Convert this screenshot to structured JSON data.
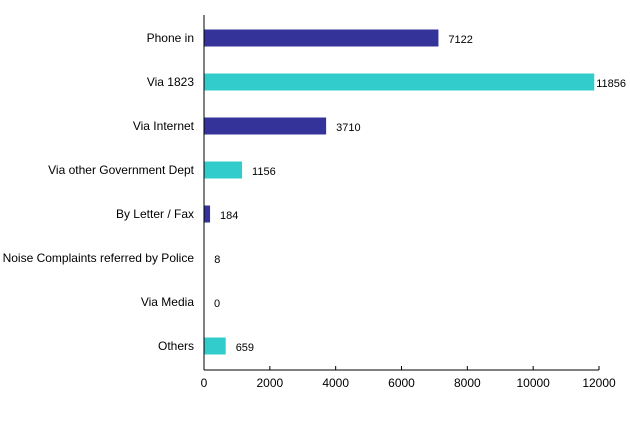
{
  "chart_data": {
    "type": "bar",
    "orientation": "horizontal",
    "title": "",
    "xlabel": "",
    "ylabel": "",
    "categories": [
      "Phone in",
      "Via 1823",
      "Via Internet",
      "Via other Government Dept",
      "By Letter / Fax",
      "Noise Complaints referred by Police",
      "Via Media",
      "Others"
    ],
    "values": [
      7122,
      11856,
      3710,
      1156,
      184,
      8,
      0,
      659
    ],
    "bar_colors": [
      "#333399",
      "#33CCCC",
      "#333399",
      "#33CCCC",
      "#333399",
      "#33CCCC",
      "#333399",
      "#33CCCC"
    ],
    "xlim": [
      0,
      12000
    ],
    "xticks": [
      0,
      2000,
      4000,
      6000,
      8000,
      10000,
      12000
    ],
    "grid": false,
    "legend": "none"
  }
}
